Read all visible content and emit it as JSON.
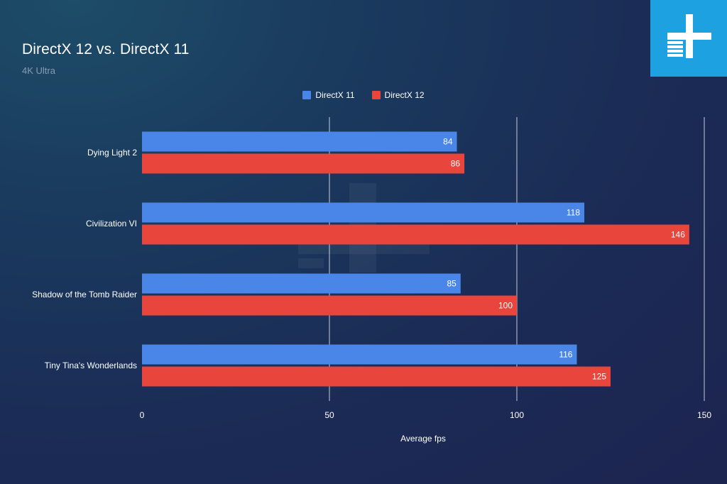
{
  "colors": {
    "directx11": "#4a86e8",
    "directx12": "#e8453c",
    "logo_bg": "#1da1e0"
  },
  "logo": {
    "icon": "plus-logo-icon"
  },
  "chart_data": {
    "type": "bar",
    "orientation": "horizontal",
    "title": "DirectX 12 vs. DirectX 11",
    "subtitle": "4K Ultra",
    "xlabel": "Average fps",
    "ylabel": "",
    "xlim": [
      0,
      150
    ],
    "xticks": [
      0,
      50,
      100,
      150
    ],
    "grid": true,
    "legend_position": "top-center",
    "categories": [
      "Dying Light 2",
      "Civilization VI",
      "Shadow of the Tomb Raider",
      "Tiny Tina's Wonderlands"
    ],
    "series": [
      {
        "name": "DirectX 11",
        "values": [
          84,
          118,
          85,
          116
        ]
      },
      {
        "name": "DirectX 12",
        "values": [
          86,
          146,
          100,
          125
        ]
      }
    ]
  }
}
